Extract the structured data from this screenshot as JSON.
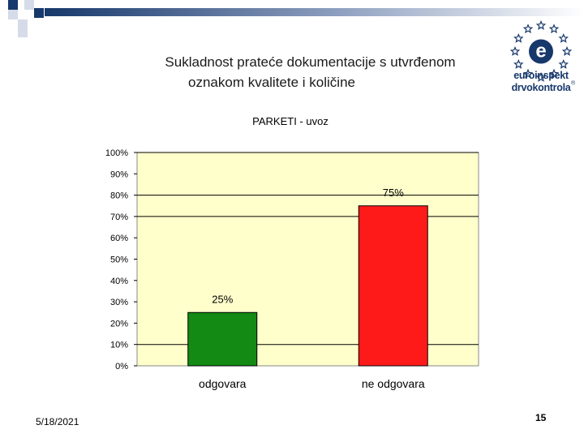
{
  "slide": {
    "title_line1": "Sukladnost prateće dokumentacije s utvrđenom",
    "title_line2": "oznakom kvalitete i količine",
    "date": "5/18/2021",
    "page_number": "15"
  },
  "logo": {
    "letter": "e",
    "line1": "euroinspekt",
    "line2": "drvokontrola",
    "registered_mark": "®",
    "brand_color": "#17386b"
  },
  "colors": {
    "plot_background": "#ffffcc",
    "bar_green": "#138a13",
    "bar_red": "#ff1a1a",
    "band_dark": "#17386b"
  },
  "chart_data": {
    "type": "bar",
    "title": "PARKETI - uvoz",
    "categories": [
      "odgovara",
      "ne odgovara"
    ],
    "values": [
      25,
      75
    ],
    "value_labels": [
      "25%",
      "75%"
    ],
    "bar_colors": [
      "#138a13",
      "#ff1a1a"
    ],
    "ylim": [
      0,
      100
    ],
    "yticks": [
      0,
      10,
      20,
      30,
      40,
      50,
      60,
      70,
      80,
      90,
      100
    ],
    "ytick_labels": [
      "0%",
      "10%",
      "20%",
      "30%",
      "40%",
      "50%",
      "60%",
      "70%",
      "80%",
      "90%",
      "100%"
    ],
    "gridlines_at": [
      10,
      70,
      80,
      100
    ],
    "xlabel": "",
    "ylabel": "",
    "legend": "none"
  }
}
